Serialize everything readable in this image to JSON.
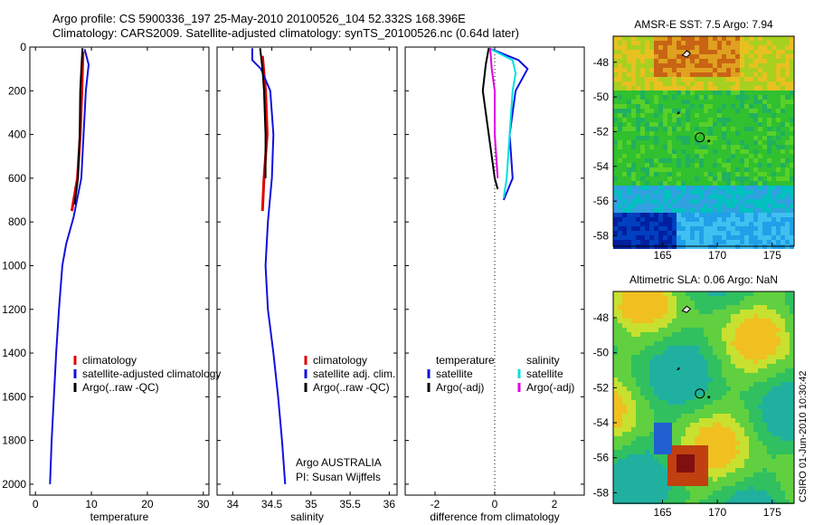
{
  "header": {
    "line1": "Argo profile: CS 5900336_197 25-May-2010 20100526_104 52.332S 168.396E",
    "line2": "Climatology: CARS2009. Satellite-adjusted climatology: synTS_20100526.nc (0.64d later)"
  },
  "colors": {
    "climatology": "#e00000",
    "satellite": "#1010e0",
    "argo": "#000000",
    "cyan": "#00e0e0",
    "magenta": "#e000e0"
  },
  "depth_axis": {
    "ticks": [
      "0",
      "200",
      "400",
      "600",
      "800",
      "1000",
      "1200",
      "1400",
      "1600",
      "1800",
      "2000"
    ]
  },
  "chart_data": [
    {
      "type": "line",
      "xlabel": "temperature",
      "ylabel": "",
      "xlim": [
        -1,
        31
      ],
      "ylim": [
        2050,
        0
      ],
      "xticks": [
        "0",
        "10",
        "20",
        "30"
      ],
      "legend": [
        "climatology",
        "satellite-adjusted climatology",
        "Argo(..raw -QC)"
      ],
      "series": [
        {
          "name": "climatology",
          "color": "#e00000",
          "points": [
            [
              8.5,
              20
            ],
            [
              8.3,
              200
            ],
            [
              8.0,
              400
            ],
            [
              7.5,
              600
            ],
            [
              6.5,
              750
            ]
          ]
        },
        {
          "name": "satellite-adjusted climatology",
          "color": "#1010e0",
          "points": [
            [
              8.8,
              10
            ],
            [
              9.5,
              80
            ],
            [
              9.0,
              200
            ],
            [
              8.6,
              400
            ],
            [
              8.2,
              600
            ],
            [
              6.8,
              780
            ],
            [
              5.5,
              900
            ],
            [
              4.8,
              1000
            ],
            [
              4.2,
              1200
            ],
            [
              3.7,
              1400
            ],
            [
              3.3,
              1600
            ],
            [
              2.9,
              1800
            ],
            [
              2.6,
              2000
            ]
          ]
        },
        {
          "name": "Argo(..raw -QC)",
          "color": "#000000",
          "points": [
            [
              8.4,
              5
            ],
            [
              8.2,
              100
            ],
            [
              8.0,
              200
            ],
            [
              7.9,
              400
            ],
            [
              7.6,
              600
            ],
            [
              7.0,
              720
            ]
          ]
        }
      ]
    },
    {
      "type": "line",
      "xlabel": "salinity",
      "ylabel": "",
      "xlim": [
        33.8,
        36.1
      ],
      "ylim": [
        2050,
        0
      ],
      "xticks": [
        "34",
        "34.5",
        "35",
        "35.5",
        "36"
      ],
      "legend": [
        "climatology",
        "satellite adj. clim.",
        "Argo(..raw -QC)"
      ],
      "annotation": [
        "Argo AUSTRALIA",
        "PI: Susan Wijffels"
      ],
      "series": [
        {
          "name": "climatology",
          "color": "#e00000",
          "points": [
            [
              34.38,
              40
            ],
            [
              34.42,
              200
            ],
            [
              34.44,
              400
            ],
            [
              34.4,
              600
            ],
            [
              34.38,
              750
            ]
          ]
        },
        {
          "name": "satellite adj. clim.",
          "color": "#1010e0",
          "points": [
            [
              34.25,
              5
            ],
            [
              34.25,
              60
            ],
            [
              34.36,
              100
            ],
            [
              34.48,
              200
            ],
            [
              34.52,
              400
            ],
            [
              34.5,
              600
            ],
            [
              34.45,
              800
            ],
            [
              34.42,
              1000
            ],
            [
              34.45,
              1200
            ],
            [
              34.52,
              1400
            ],
            [
              34.58,
              1600
            ],
            [
              34.63,
              1800
            ],
            [
              34.67,
              2000
            ]
          ]
        },
        {
          "name": "Argo(..raw -QC)",
          "color": "#000000",
          "points": [
            [
              34.35,
              5
            ],
            [
              34.38,
              100
            ],
            [
              34.4,
              200
            ],
            [
              34.42,
              400
            ],
            [
              34.42,
              600
            ]
          ]
        }
      ]
    },
    {
      "type": "line",
      "xlabel": "difference from climatology",
      "ylabel": "",
      "xlim": [
        -3,
        3
      ],
      "ylim": [
        2050,
        0
      ],
      "xticks": [
        "-2",
        "0",
        "2"
      ],
      "legend_left_title": "temperature",
      "legend_right_title": "salinity",
      "legend_left": [
        "satellite",
        "Argo(-adj)"
      ],
      "legend_right": [
        "satellite",
        "Argo(-adj)"
      ],
      "series": [
        {
          "name": "temperature satellite",
          "color": "#1010e0",
          "points": [
            [
              -0.1,
              10
            ],
            [
              0.8,
              60
            ],
            [
              1.1,
              100
            ],
            [
              0.7,
              200
            ],
            [
              0.5,
              400
            ],
            [
              0.6,
              600
            ],
            [
              0.3,
              700
            ]
          ]
        },
        {
          "name": "salinity satellite",
          "color": "#00e0e0",
          "points": [
            [
              -0.2,
              5
            ],
            [
              0.6,
              60
            ],
            [
              0.7,
              120
            ],
            [
              0.6,
              200
            ],
            [
              0.5,
              400
            ],
            [
              0.4,
              600
            ],
            [
              0.3,
              690
            ]
          ]
        },
        {
          "name": "temperature Argo(-adj)",
          "color": "#000000",
          "points": [
            [
              -0.2,
              5
            ],
            [
              -0.3,
              80
            ],
            [
              -0.4,
              200
            ],
            [
              -0.2,
              400
            ],
            [
              0.0,
              600
            ],
            [
              0.1,
              650
            ]
          ]
        },
        {
          "name": "salinity Argo(-adj)",
          "color": "#e000e0",
          "points": [
            [
              -0.15,
              5
            ],
            [
              -0.1,
              100
            ],
            [
              0.0,
              200
            ],
            [
              0.0,
              400
            ],
            [
              0.1,
              600
            ]
          ]
        }
      ]
    }
  ],
  "maps": [
    {
      "title": "AMSR-E SST: 7.5 Argo: 7.94",
      "xticks": [
        "165",
        "170",
        "175"
      ],
      "yticks": [
        "-48",
        "-50",
        "-52",
        "-54",
        "-56",
        "-58"
      ]
    },
    {
      "title": "Altimetric SLA: 0.06 Argo: NaN",
      "xticks": [
        "165",
        "170",
        "175"
      ],
      "yticks": [
        "-48",
        "-50",
        "-52",
        "-54",
        "-56",
        "-58"
      ]
    }
  ],
  "stamp": "CSIRO 01-Jun-2010 10:30:42"
}
